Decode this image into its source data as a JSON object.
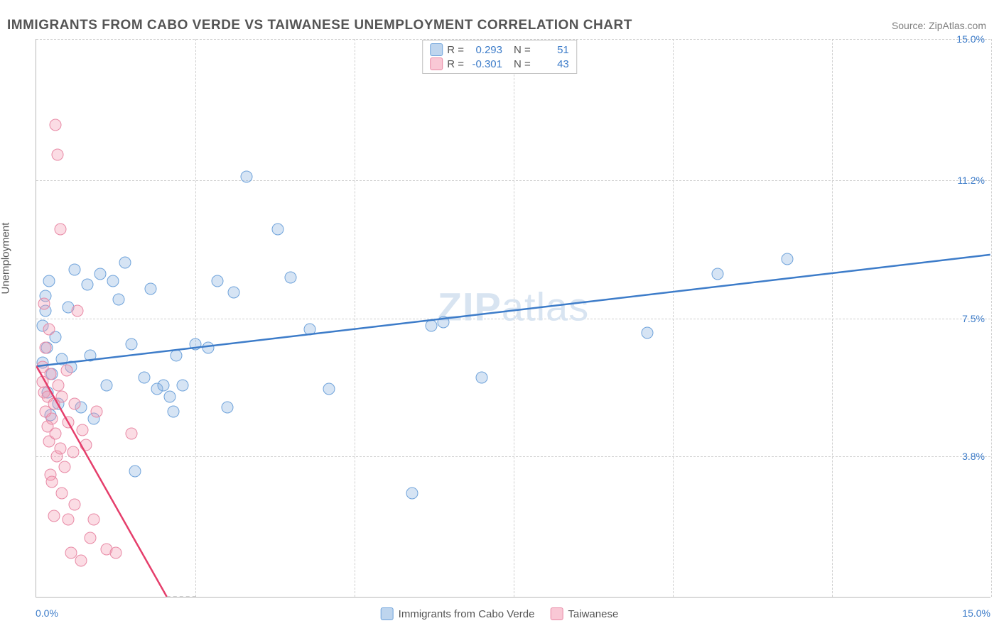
{
  "title": "IMMIGRANTS FROM CABO VERDE VS TAIWANESE UNEMPLOYMENT CORRELATION CHART",
  "source": "Source: ZipAtlas.com",
  "ylabel": "Unemployment",
  "watermark_bold": "ZIP",
  "watermark_thin": "atlas",
  "chart": {
    "type": "scatter-with-regression",
    "xlim": [
      0.0,
      15.0
    ],
    "ylim": [
      0.0,
      15.0
    ],
    "x_tick_left": "0.0%",
    "x_tick_right": "15.0%",
    "y_ticks": [
      {
        "value": 3.8,
        "label": "3.8%"
      },
      {
        "value": 7.5,
        "label": "7.5%"
      },
      {
        "value": 11.2,
        "label": "11.2%"
      },
      {
        "value": 15.0,
        "label": "15.0%"
      }
    ],
    "x_grid_values": [
      2.5,
      5.0,
      7.5,
      10.0,
      12.5,
      15.0
    ],
    "background_color": "#ffffff",
    "grid_color": "#d0d0d0",
    "axis_color": "#b8b8b8",
    "marker_radius": 8.5,
    "series": [
      {
        "id": "caboverde",
        "label": "Immigrants from Cabo Verde",
        "fill_color": "rgba(137,178,224,0.35)",
        "stroke_color": "#6fa3db",
        "line_color": "#3d7cc9",
        "line_width": 2.5,
        "R": "0.293",
        "N": "51",
        "regression": {
          "x1": 0.0,
          "y1": 6.2,
          "x2": 15.0,
          "y2": 9.2
        },
        "points": [
          [
            0.1,
            6.3
          ],
          [
            0.1,
            7.3
          ],
          [
            0.15,
            7.7
          ],
          [
            0.15,
            8.1
          ],
          [
            0.17,
            6.7
          ],
          [
            0.18,
            5.5
          ],
          [
            0.2,
            8.5
          ],
          [
            0.22,
            4.9
          ],
          [
            0.25,
            6.0
          ],
          [
            0.3,
            7.0
          ],
          [
            0.35,
            5.2
          ],
          [
            0.4,
            6.4
          ],
          [
            0.5,
            7.8
          ],
          [
            0.55,
            6.2
          ],
          [
            0.6,
            8.8
          ],
          [
            0.7,
            5.1
          ],
          [
            0.8,
            8.4
          ],
          [
            0.85,
            6.5
          ],
          [
            0.9,
            4.8
          ],
          [
            1.0,
            8.7
          ],
          [
            1.1,
            5.7
          ],
          [
            1.2,
            8.5
          ],
          [
            1.3,
            8.0
          ],
          [
            1.4,
            9.0
          ],
          [
            1.5,
            6.8
          ],
          [
            1.55,
            3.4
          ],
          [
            1.7,
            5.9
          ],
          [
            1.8,
            8.3
          ],
          [
            1.9,
            5.6
          ],
          [
            2.0,
            5.7
          ],
          [
            2.1,
            5.4
          ],
          [
            2.15,
            5.0
          ],
          [
            2.2,
            6.5
          ],
          [
            2.3,
            5.7
          ],
          [
            2.5,
            6.8
          ],
          [
            2.7,
            6.7
          ],
          [
            2.85,
            8.5
          ],
          [
            3.0,
            5.1
          ],
          [
            3.1,
            8.2
          ],
          [
            3.3,
            11.3
          ],
          [
            3.8,
            9.9
          ],
          [
            4.0,
            8.6
          ],
          [
            4.3,
            7.2
          ],
          [
            4.6,
            5.6
          ],
          [
            5.9,
            2.8
          ],
          [
            6.2,
            7.3
          ],
          [
            6.4,
            7.4
          ],
          [
            7.0,
            5.9
          ],
          [
            9.6,
            7.1
          ],
          [
            10.7,
            8.7
          ],
          [
            11.8,
            9.1
          ]
        ]
      },
      {
        "id": "taiwanese",
        "label": "Taiwanese",
        "fill_color": "rgba(244,154,178,0.35)",
        "stroke_color": "#e889a5",
        "line_color": "#e53e6b",
        "line_width": 2.5,
        "R": "-0.301",
        "N": "43",
        "regression": {
          "x1": 0.0,
          "y1": 6.2,
          "x2": 2.05,
          "y2": 0.0
        },
        "regression_extend": {
          "x1": 2.05,
          "y1": 0.0,
          "x2": 2.55,
          "y2": -1.5
        },
        "points": [
          [
            0.1,
            5.8
          ],
          [
            0.1,
            6.2
          ],
          [
            0.12,
            5.5
          ],
          [
            0.12,
            7.9
          ],
          [
            0.14,
            5.0
          ],
          [
            0.15,
            6.7
          ],
          [
            0.18,
            4.6
          ],
          [
            0.18,
            5.4
          ],
          [
            0.2,
            4.2
          ],
          [
            0.2,
            7.2
          ],
          [
            0.22,
            3.3
          ],
          [
            0.22,
            6.0
          ],
          [
            0.25,
            4.8
          ],
          [
            0.25,
            3.1
          ],
          [
            0.28,
            5.2
          ],
          [
            0.28,
            2.2
          ],
          [
            0.3,
            4.4
          ],
          [
            0.3,
            12.7
          ],
          [
            0.32,
            3.8
          ],
          [
            0.33,
            11.9
          ],
          [
            0.35,
            5.7
          ],
          [
            0.38,
            4.0
          ],
          [
            0.38,
            9.9
          ],
          [
            0.4,
            2.8
          ],
          [
            0.4,
            5.4
          ],
          [
            0.45,
            3.5
          ],
          [
            0.48,
            6.1
          ],
          [
            0.5,
            2.1
          ],
          [
            0.5,
            4.7
          ],
          [
            0.55,
            1.2
          ],
          [
            0.58,
            3.9
          ],
          [
            0.6,
            2.5
          ],
          [
            0.6,
            5.2
          ],
          [
            0.65,
            7.7
          ],
          [
            0.7,
            1.0
          ],
          [
            0.72,
            4.5
          ],
          [
            0.78,
            4.1
          ],
          [
            0.85,
            1.6
          ],
          [
            0.9,
            2.1
          ],
          [
            0.95,
            5.0
          ],
          [
            1.1,
            1.3
          ],
          [
            1.25,
            1.2
          ],
          [
            1.5,
            4.4
          ]
        ]
      }
    ]
  },
  "legend_top": {
    "R_label": "R",
    "N_label": "N",
    "eq": "="
  }
}
